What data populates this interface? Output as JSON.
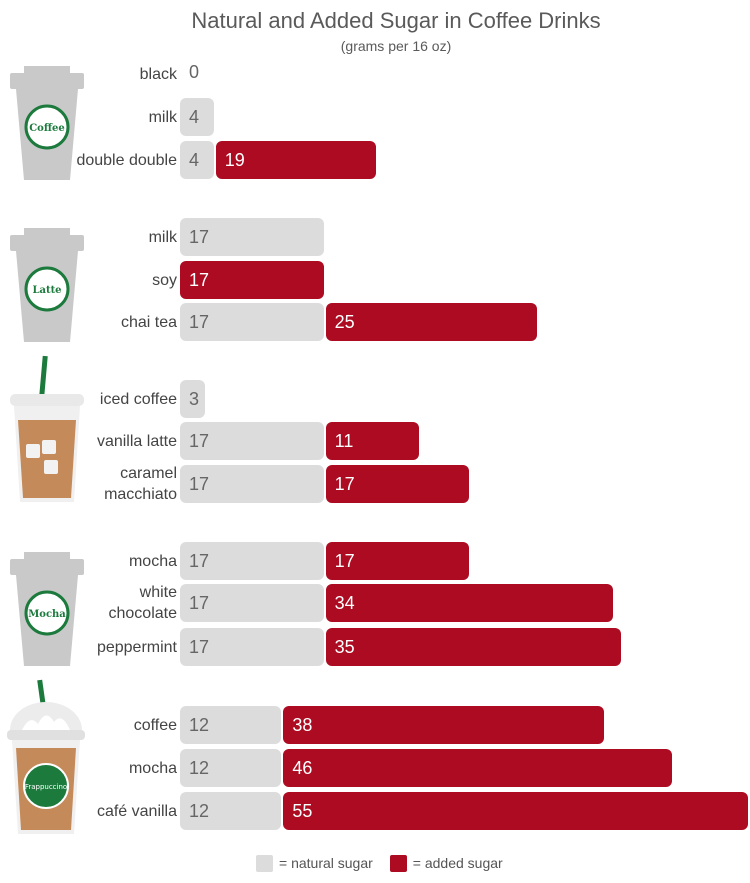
{
  "chart_data": {
    "type": "bar",
    "stacked": true,
    "orientation": "horizontal",
    "title": "Natural and Added Sugar in Coffee Drinks",
    "subtitle": "(grams per 16 oz)",
    "series": [
      {
        "name": "natural sugar",
        "color": "#dcdcdc"
      },
      {
        "name": "added sugar",
        "color": "#ac0b21"
      }
    ],
    "groups": [
      {
        "cup_label": "Coffee",
        "cup_icon": "coffee-cup-icon",
        "items": [
          {
            "label": "black",
            "natural": 0,
            "added": 0
          },
          {
            "label": "milk",
            "natural": 4,
            "added": 0
          },
          {
            "label": "double double",
            "natural": 4,
            "added": 19
          }
        ]
      },
      {
        "cup_label": "Latte",
        "cup_icon": "latte-cup-icon",
        "items": [
          {
            "label": "milk",
            "natural": 17,
            "added": 0
          },
          {
            "label": "soy",
            "natural": 0,
            "added": 17
          },
          {
            "label": "chai tea",
            "natural": 17,
            "added": 25
          }
        ]
      },
      {
        "cup_label": "",
        "cup_icon": "iced-coffee-cup-icon",
        "items": [
          {
            "label": "iced coffee",
            "natural": 3,
            "added": 0
          },
          {
            "label": "vanilla latte",
            "natural": 17,
            "added": 11
          },
          {
            "label": "caramel\nmacchiato",
            "natural": 17,
            "added": 17
          }
        ]
      },
      {
        "cup_label": "Mocha",
        "cup_icon": "mocha-cup-icon",
        "items": [
          {
            "label": "mocha",
            "natural": 17,
            "added": 17
          },
          {
            "label": "white\nchocolate",
            "natural": 17,
            "added": 34
          },
          {
            "label": "peppermint",
            "natural": 17,
            "added": 35
          }
        ]
      },
      {
        "cup_label": "Frappuccino",
        "cup_icon": "frappuccino-cup-icon",
        "items": [
          {
            "label": "coffee",
            "natural": 12,
            "added": 38
          },
          {
            "label": "mocha",
            "natural": 12,
            "added": 46
          },
          {
            "label": "café vanilla",
            "natural": 12,
            "added": 55
          }
        ]
      }
    ],
    "legend": {
      "placement": "bottom",
      "items": [
        "= natural sugar",
        "= added sugar"
      ]
    }
  }
}
